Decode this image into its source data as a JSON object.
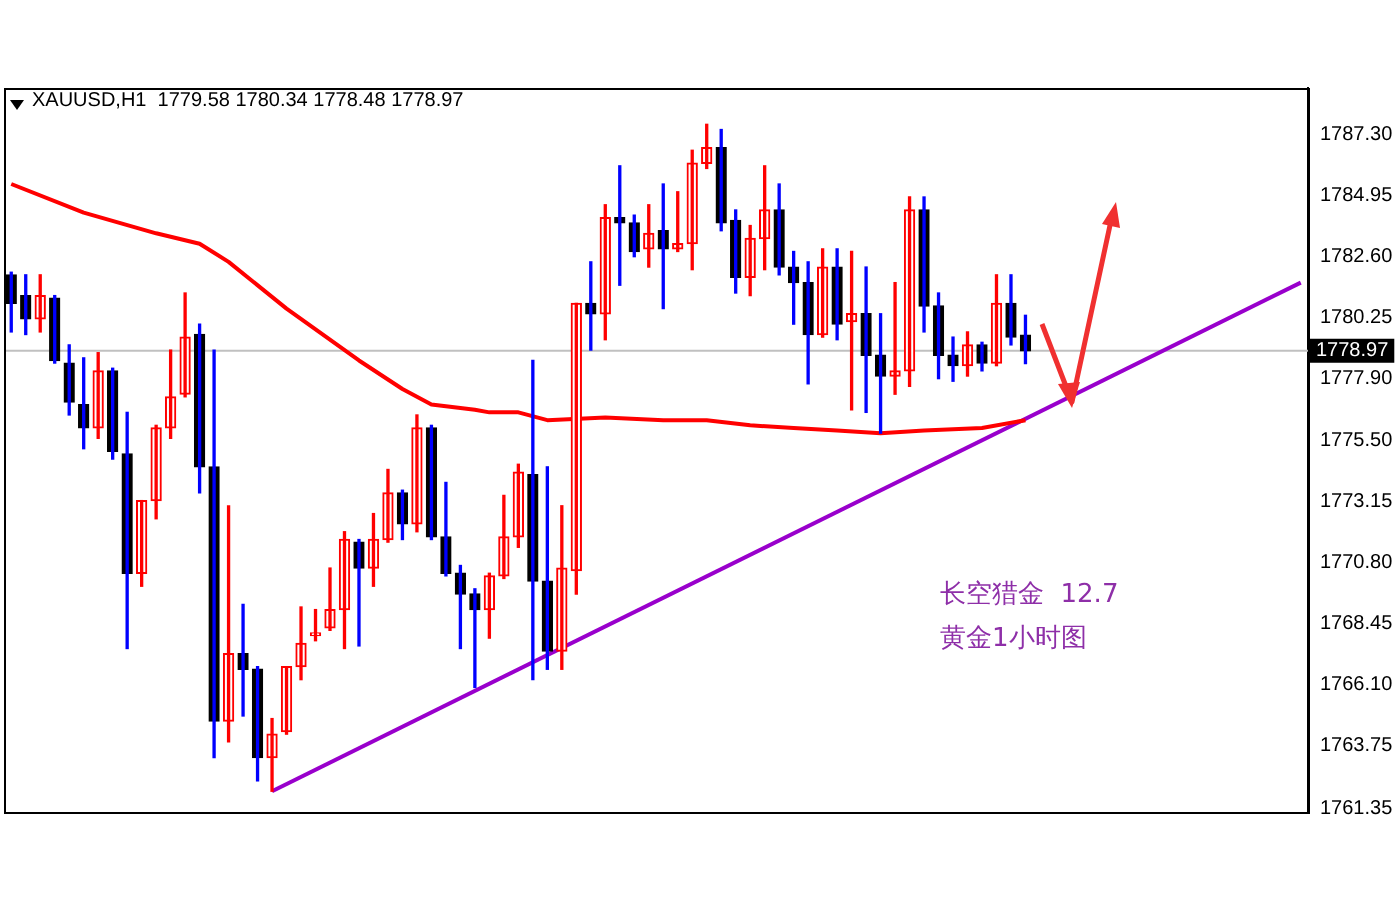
{
  "chart_data": {
    "type": "candlestick",
    "title": "XAUUSD,H1  1779.58 1780.34 1778.48 1778.97",
    "categories": [
      null,
      null,
      null,
      null,
      null,
      null,
      null,
      null,
      null,
      null,
      null,
      null,
      null,
      null,
      null,
      null,
      null,
      null,
      null,
      null,
      null,
      null,
      null,
      null,
      null,
      null,
      null,
      null,
      null,
      null,
      null,
      null,
      null,
      null,
      null,
      null,
      null,
      null,
      null,
      null,
      null,
      null,
      null,
      null,
      null,
      null,
      null,
      null,
      null,
      null,
      null,
      null,
      null,
      null,
      null,
      null,
      null,
      null,
      null,
      null,
      null,
      null,
      null,
      null,
      null,
      null,
      null,
      null,
      null,
      null,
      null,
      null,
      null,
      null,
      null,
      null,
      null,
      null,
      null,
      null,
      null,
      null,
      null,
      null,
      null,
      null,
      null,
      null,
      null,
      null
    ],
    "ohlc": [
      [
        1781.9,
        1782.0,
        1779.7,
        1780.8
      ],
      [
        1781.1,
        1781.9,
        1779.6,
        1780.2
      ],
      [
        1780.2,
        1781.9,
        1779.7,
        1781.1
      ],
      [
        1781.0,
        1781.1,
        1778.5,
        1778.6
      ],
      [
        1778.5,
        1779.2,
        1776.5,
        1777.0
      ],
      [
        1776.9,
        1778.7,
        1775.2,
        1776.0
      ],
      [
        1776.0,
        1778.9,
        1775.6,
        1778.2
      ],
      [
        1778.2,
        1778.3,
        1774.8,
        1775.1
      ],
      [
        1775.0,
        1776.6,
        1767.5,
        1770.4
      ],
      [
        1770.4,
        1773.2,
        1769.9,
        1773.2
      ],
      [
        1773.2,
        1776.1,
        1772.5,
        1776.0
      ],
      [
        1776.0,
        1779.0,
        1775.6,
        1777.2
      ],
      [
        1777.3,
        1781.2,
        1777.2,
        1779.5
      ],
      [
        1779.6,
        1780.0,
        1773.5,
        1774.5
      ],
      [
        1774.5,
        1779.0,
        1763.3,
        1764.7
      ],
      [
        1764.7,
        1773.0,
        1763.9,
        1767.3
      ],
      [
        1767.3,
        1769.2,
        1764.9,
        1766.7
      ],
      [
        1766.7,
        1766.8,
        1762.4,
        1763.3
      ],
      [
        1763.3,
        1764.8,
        1762.0,
        1764.2
      ],
      [
        1764.3,
        1766.8,
        1764.2,
        1766.8
      ],
      [
        1766.8,
        1769.1,
        1766.3,
        1767.7
      ],
      [
        1768.0,
        1769.0,
        1767.8,
        1768.1
      ],
      [
        1768.3,
        1770.6,
        1768.2,
        1769.0
      ],
      [
        1769.0,
        1772.0,
        1767.5,
        1771.7
      ],
      [
        1771.6,
        1771.7,
        1767.6,
        1770.6
      ],
      [
        1770.6,
        1772.7,
        1769.9,
        1771.7
      ],
      [
        1771.7,
        1774.4,
        1771.6,
        1773.5
      ],
      [
        1773.5,
        1773.6,
        1771.7,
        1772.3
      ],
      [
        1772.3,
        1776.5,
        1772.0,
        1776.0
      ],
      [
        1776.0,
        1776.1,
        1771.7,
        1771.8
      ],
      [
        1771.8,
        1773.9,
        1770.3,
        1770.4
      ],
      [
        1770.4,
        1770.7,
        1767.5,
        1769.6
      ],
      [
        1769.6,
        1769.8,
        1766.0,
        1769.0
      ],
      [
        1769.0,
        1770.4,
        1767.9,
        1770.3
      ],
      [
        1770.3,
        1773.4,
        1770.2,
        1771.8
      ],
      [
        1771.8,
        1774.6,
        1771.4,
        1774.3
      ],
      [
        1774.2,
        1778.6,
        1766.3,
        1770.1
      ],
      [
        1770.1,
        1774.5,
        1766.7,
        1767.4
      ],
      [
        1767.4,
        1773.0,
        1766.7,
        1770.6
      ],
      [
        1770.5,
        1780.8,
        1769.6,
        1780.8
      ],
      [
        1780.8,
        1782.4,
        1779.0,
        1780.4
      ],
      [
        1780.4,
        1784.6,
        1779.4,
        1784.1
      ],
      [
        1784.1,
        1786.1,
        1781.5,
        1783.9
      ],
      [
        1783.9,
        1784.2,
        1782.6,
        1782.8
      ],
      [
        1782.9,
        1784.6,
        1782.2,
        1783.5
      ],
      [
        1783.6,
        1785.4,
        1780.6,
        1782.9
      ],
      [
        1782.9,
        1785.1,
        1782.8,
        1783.1
      ],
      [
        1783.1,
        1786.7,
        1782.1,
        1786.2
      ],
      [
        1786.2,
        1787.7,
        1786.0,
        1786.8
      ],
      [
        1786.8,
        1787.5,
        1783.6,
        1783.9
      ],
      [
        1784.0,
        1784.4,
        1781.2,
        1781.8
      ],
      [
        1781.8,
        1783.8,
        1781.1,
        1783.3
      ],
      [
        1783.3,
        1786.1,
        1782.1,
        1784.4
      ],
      [
        1784.4,
        1785.4,
        1781.9,
        1782.2
      ],
      [
        1782.2,
        1782.8,
        1780.0,
        1781.6
      ],
      [
        1781.6,
        1782.4,
        1777.7,
        1779.6
      ],
      [
        1779.6,
        1782.9,
        1779.5,
        1782.2
      ],
      [
        1782.2,
        1782.9,
        1779.4,
        1780.0
      ],
      [
        1780.1,
        1782.8,
        1776.7,
        1780.4
      ],
      [
        1780.4,
        1782.2,
        1776.6,
        1778.8
      ],
      [
        1778.8,
        1780.4,
        1775.8,
        1778.0
      ],
      [
        1778.0,
        1781.6,
        1777.3,
        1778.2
      ],
      [
        1778.2,
        1784.9,
        1777.6,
        1784.4
      ],
      [
        1784.4,
        1784.9,
        1779.7,
        1780.7
      ],
      [
        1780.7,
        1781.2,
        1777.9,
        1778.8
      ],
      [
        1778.8,
        1779.5,
        1777.8,
        1778.4
      ],
      [
        1778.4,
        1779.7,
        1778.0,
        1779.2
      ],
      [
        1779.2,
        1779.3,
        1778.2,
        1778.5
      ],
      [
        1778.5,
        1781.9,
        1778.4,
        1780.8
      ],
      [
        1780.8,
        1781.9,
        1779.2,
        1779.5
      ],
      [
        1779.58,
        1780.34,
        1778.48,
        1778.97
      ],
      null,
      null,
      null,
      null,
      null,
      null,
      null,
      null,
      null,
      null,
      null,
      null,
      null,
      null,
      null,
      null,
      null,
      null,
      null
    ],
    "colors": [
      "#000000",
      "#000000",
      "#ff0000",
      "#000000",
      "#000000",
      "#000000",
      "#ff0000",
      "#000000",
      "#000000",
      "#ff0000",
      "#ff0000",
      "#ff0000",
      "#ff0000",
      "#000000",
      "#000000",
      "#ff0000",
      "#000000",
      "#000000",
      "#ff0000",
      "#ff0000",
      "#ff0000",
      "#ff0000",
      "#ff0000",
      "#ff0000",
      "#000000",
      "#ff0000",
      "#ff0000",
      "#000000",
      "#ff0000",
      "#000000",
      "#000000",
      "#000000",
      "#000000",
      "#ff0000",
      "#ff0000",
      "#ff0000",
      "#000000",
      "#000000",
      "#ff0000",
      "#ff0000",
      "#000000",
      "#ff0000",
      "#000000",
      "#000000",
      "#ff0000",
      "#000000",
      "#ff0000",
      "#ff0000",
      "#ff0000",
      "#000000",
      "#000000",
      "#ff0000",
      "#ff0000",
      "#000000",
      "#000000",
      "#000000",
      "#ff0000",
      "#000000",
      "#ff0000",
      "#000000",
      "#000000",
      "#ff0000",
      "#ff0000",
      "#000000",
      "#000000",
      "#000000",
      "#ff0000",
      "#000000",
      "#ff0000",
      "#000000",
      "#000000",
      null,
      null,
      null,
      null,
      null,
      null,
      null,
      null,
      null,
      null,
      null,
      null,
      null,
      null,
      null,
      null,
      null,
      null,
      null
    ],
    "series": [
      {
        "type": "line",
        "color": "#ff0000",
        "values": [
          1785.4,
          null,
          null,
          null,
          null,
          1784.3,
          null,
          null,
          null,
          null,
          1783.5,
          null,
          null,
          1783.1,
          null,
          1782.4,
          null,
          null,
          null,
          1780.6,
          null,
          null,
          null,
          null,
          1778.6,
          null,
          null,
          1777.5,
          null,
          1776.9,
          null,
          null,
          1776.7,
          1776.6,
          null,
          1776.6,
          null,
          1776.3,
          null,
          null,
          null,
          1776.4,
          null,
          null,
          null,
          1776.3,
          null,
          null,
          1776.3,
          null,
          null,
          1776.1,
          null,
          null,
          1776.0,
          null,
          null,
          1775.9,
          null,
          null,
          1775.8,
          null,
          null,
          1775.9,
          null,
          null,
          null,
          1776.0,
          null,
          null,
          1776.3,
          null,
          null,
          null,
          null,
          null,
          null,
          null,
          null,
          null,
          null,
          null,
          null,
          null,
          null,
          null,
          null,
          null,
          null,
          null
        ]
      },
      {
        "type": "line",
        "color": "#9900cc",
        "values": [
          null,
          null,
          null,
          null,
          null,
          null,
          null,
          null,
          null,
          null,
          null,
          null,
          null,
          null,
          null,
          null,
          null,
          null,
          1762.0,
          null,
          null,
          null,
          null,
          null,
          null,
          null,
          null,
          null,
          null,
          null,
          null,
          null,
          null,
          null,
          null,
          null,
          null,
          null,
          null,
          null,
          null,
          null,
          null,
          null,
          null,
          null,
          null,
          null,
          null,
          null,
          null,
          null,
          null,
          null,
          null,
          null,
          null,
          null,
          null,
          null,
          null,
          null,
          null,
          null,
          null,
          null,
          null,
          null,
          null,
          null,
          null,
          null,
          null,
          null,
          null,
          null,
          null,
          null,
          null,
          null,
          null,
          null,
          null,
          null,
          null,
          null,
          null,
          null,
          null,
          1781.6
        ]
      }
    ],
    "ylim": [
      1761.2,
      1789.1
    ],
    "yticks": [
      {
        "value": 1787.3,
        "label": "1787.30"
      },
      {
        "value": 1784.95,
        "label": "1784.95"
      },
      {
        "value": 1782.6,
        "label": "1782.60"
      },
      {
        "value": 1780.25,
        "label": "1780.25"
      },
      {
        "value": 1777.9,
        "label": "1777.90"
      },
      {
        "value": 1775.5,
        "label": "1775.50"
      },
      {
        "value": 1773.15,
        "label": "1773.15"
      },
      {
        "value": 1770.8,
        "label": "1770.80"
      },
      {
        "value": 1768.45,
        "label": "1768.45"
      },
      {
        "value": 1766.1,
        "label": "1766.10"
      },
      {
        "value": 1763.75,
        "label": "1763.75"
      },
      {
        "value": 1761.35,
        "label": "1761.35"
      }
    ],
    "ref_lines": [
      {
        "axis": "y",
        "value": 1778.97,
        "label": "1778.97",
        "color": "#c0c0c0"
      }
    ],
    "annotations": [
      "长空猎金  12.7",
      "黄金1小时图"
    ],
    "grid": false,
    "legend": false
  }
}
